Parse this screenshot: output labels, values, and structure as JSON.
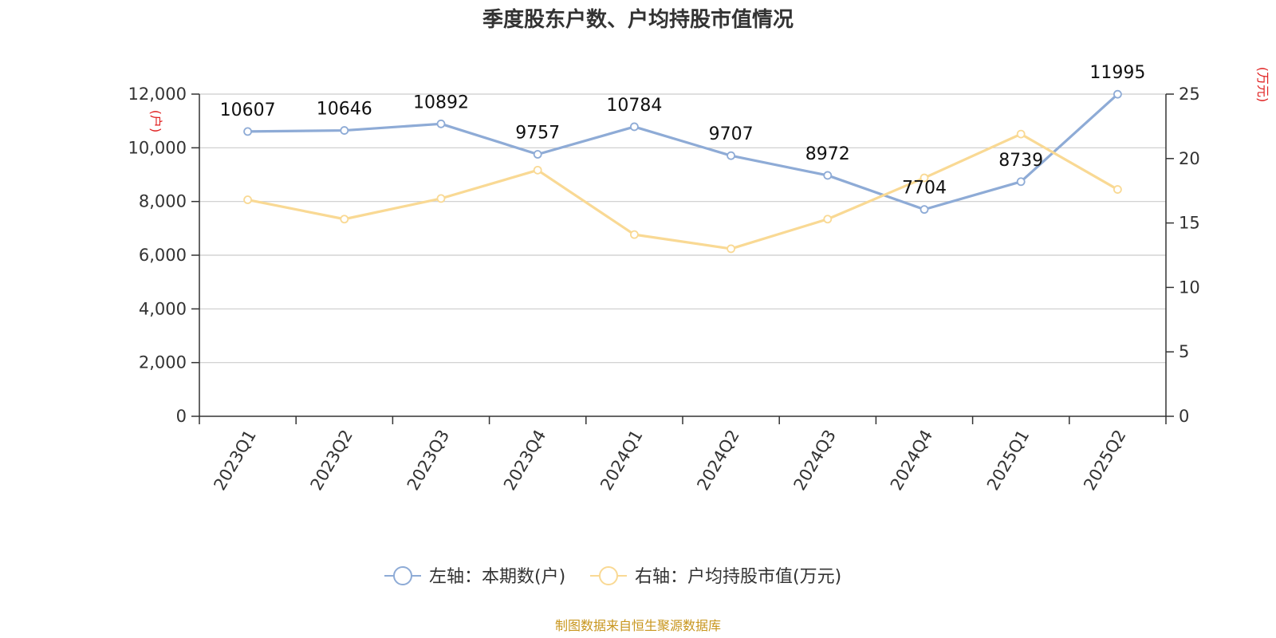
{
  "chart_data": {
    "type": "line",
    "title": "季度股东户数、户均持股市值情况",
    "categories": [
      "2023Q1",
      "2023Q2",
      "2023Q3",
      "2023Q4",
      "2024Q1",
      "2024Q2",
      "2024Q3",
      "2024Q4",
      "2025Q1",
      "2025Q2"
    ],
    "series": [
      {
        "name": "左轴：本期数(户)",
        "axis": "left",
        "color": "#8eabd6",
        "values": [
          10607,
          10646,
          10892,
          9757,
          10784,
          9707,
          8972,
          7704,
          8739,
          11995
        ],
        "show_labels": true
      },
      {
        "name": "右轴：户均持股市值(万元)",
        "axis": "right",
        "color": "#f9d994",
        "values": [
          16.8,
          15.3,
          16.9,
          19.1,
          14.1,
          13.0,
          15.3,
          18.5,
          21.9,
          17.6
        ],
        "show_labels": false
      }
    ],
    "left_axis": {
      "unit": "(户)",
      "ylim": [
        0,
        12000
      ],
      "ticks": [
        0,
        2000,
        4000,
        6000,
        8000,
        10000,
        12000
      ],
      "tick_labels": [
        "0",
        "2,000",
        "4,000",
        "6,000",
        "8,000",
        "10,000",
        "12,000"
      ]
    },
    "right_axis": {
      "unit": "(万元)",
      "ylim": [
        0,
        25
      ],
      "ticks": [
        0,
        5,
        10,
        15,
        20,
        25
      ],
      "tick_labels": [
        "0",
        "5",
        "10",
        "15",
        "20",
        "25"
      ]
    },
    "grid": true,
    "legend_position": "bottom",
    "source": "制图数据来自恒生聚源数据库"
  }
}
